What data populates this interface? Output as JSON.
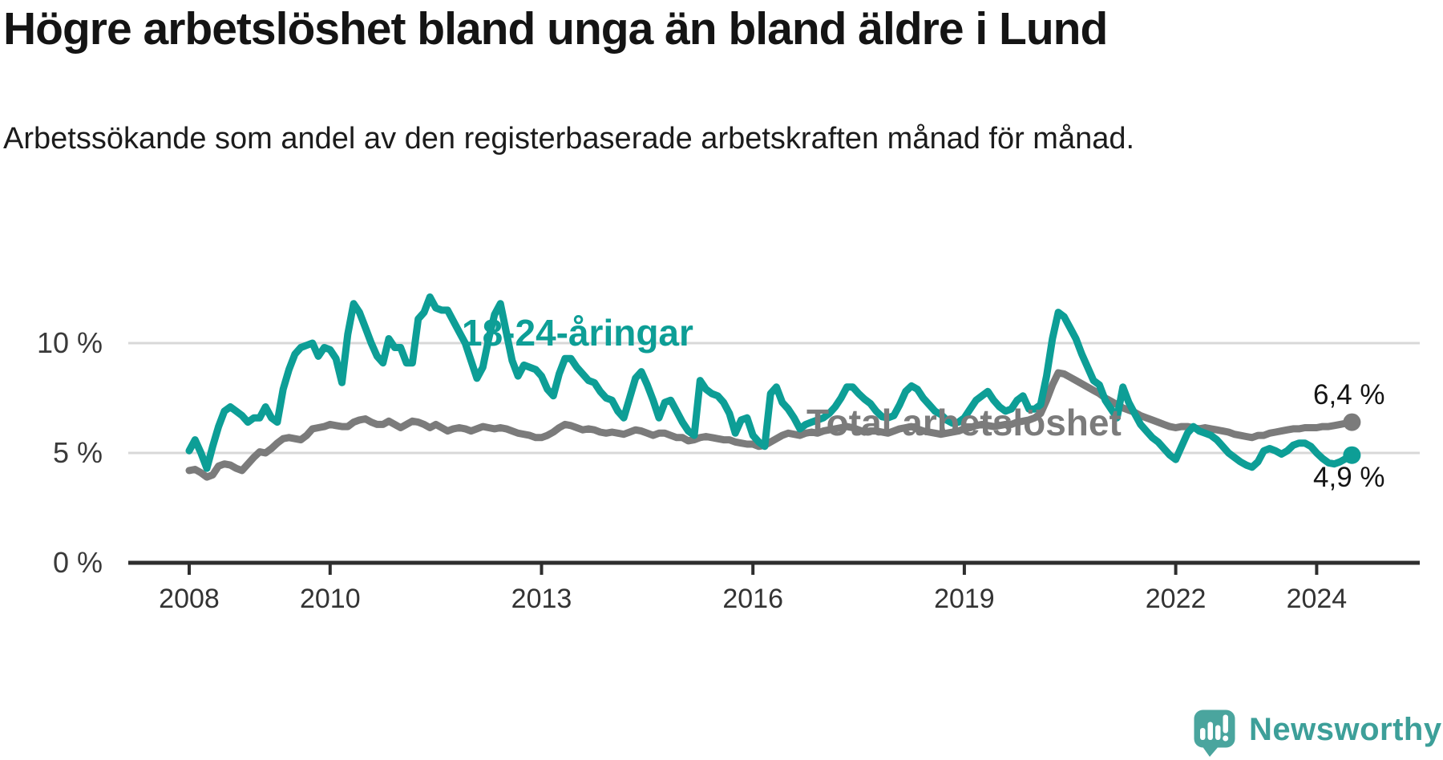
{
  "header": {
    "title": "Högre arbetslöshet bland unga än bland äldre i Lund",
    "subtitle": "Arbetssökande som andel av den registerbaserade arbetskraften månad för månad."
  },
  "chart_data": {
    "type": "line",
    "x_unit": "month",
    "x_start": "2008-01",
    "x_end": "2024-07",
    "grid": "horizontal",
    "legend_position": "inline-labels",
    "ylim": [
      0,
      13
    ],
    "colors": {
      "grid": "#d8d8d8",
      "axis": "#2e2e2e"
    },
    "y_ticks": [
      {
        "value": 0,
        "label": "0 %"
      },
      {
        "value": 5,
        "label": "5 %"
      },
      {
        "value": 10,
        "label": "10 %"
      }
    ],
    "x_ticks": [
      {
        "year": 2008,
        "label": "2008"
      },
      {
        "year": 2010,
        "label": "2010"
      },
      {
        "year": 2013,
        "label": "2013"
      },
      {
        "year": 2016,
        "label": "2016"
      },
      {
        "year": 2019,
        "label": "2019"
      },
      {
        "year": 2022,
        "label": "2022"
      },
      {
        "year": 2024,
        "label": "2024"
      }
    ],
    "series": [
      {
        "id": "total",
        "name": "Total arbetslöshet",
        "color": "#7b7b7b",
        "end_label": "6,4 %",
        "end_value": 6.4,
        "values": [
          4.2,
          4.25,
          4.1,
          3.9,
          4.0,
          4.4,
          4.5,
          4.45,
          4.3,
          4.2,
          4.5,
          4.8,
          5.05,
          5.0,
          5.2,
          5.45,
          5.65,
          5.7,
          5.65,
          5.6,
          5.8,
          6.1,
          6.15,
          6.2,
          6.3,
          6.25,
          6.2,
          6.2,
          6.4,
          6.5,
          6.55,
          6.4,
          6.3,
          6.3,
          6.45,
          6.3,
          6.15,
          6.3,
          6.45,
          6.4,
          6.3,
          6.15,
          6.3,
          6.15,
          6.0,
          6.1,
          6.15,
          6.1,
          6.0,
          6.1,
          6.2,
          6.15,
          6.1,
          6.15,
          6.1,
          6.0,
          5.9,
          5.85,
          5.8,
          5.7,
          5.7,
          5.8,
          5.95,
          6.15,
          6.3,
          6.25,
          6.15,
          6.05,
          6.1,
          6.05,
          5.95,
          5.9,
          5.95,
          5.9,
          5.85,
          5.95,
          6.05,
          6.0,
          5.9,
          5.8,
          5.9,
          5.9,
          5.8,
          5.7,
          5.7,
          5.55,
          5.6,
          5.7,
          5.75,
          5.7,
          5.65,
          5.6,
          5.6,
          5.5,
          5.45,
          5.4,
          5.4,
          5.3,
          5.35,
          5.5,
          5.65,
          5.8,
          5.9,
          5.85,
          5.8,
          5.9,
          5.95,
          5.9,
          6.0,
          6.05,
          6.1,
          6.15,
          6.2,
          6.15,
          6.05,
          5.95,
          6.0,
          6.0,
          5.95,
          5.9,
          6.0,
          6.1,
          6.15,
          6.2,
          6.1,
          6.0,
          5.95,
          5.9,
          5.85,
          5.9,
          5.95,
          6.0,
          6.1,
          6.15,
          6.25,
          6.3,
          6.25,
          6.2,
          6.25,
          6.3,
          6.3,
          6.4,
          6.45,
          6.5,
          6.6,
          6.8,
          7.4,
          8.1,
          8.65,
          8.6,
          8.45,
          8.3,
          8.15,
          8.0,
          7.85,
          7.7,
          7.5,
          7.35,
          7.2,
          7.05,
          6.95,
          6.85,
          6.7,
          6.6,
          6.5,
          6.4,
          6.3,
          6.2,
          6.15,
          6.2,
          6.2,
          6.15,
          6.1,
          6.15,
          6.1,
          6.05,
          6.0,
          5.95,
          5.85,
          5.8,
          5.75,
          5.7,
          5.8,
          5.8,
          5.9,
          5.95,
          6.0,
          6.05,
          6.1,
          6.1,
          6.15,
          6.15,
          6.15,
          6.2,
          6.2,
          6.25,
          6.3,
          6.35,
          6.4
        ]
      },
      {
        "id": "youth",
        "name": "18-24-åringar",
        "color": "#0d9e96",
        "end_label": "4,9 %",
        "end_value": 4.9,
        "values": [
          5.1,
          5.6,
          5.0,
          4.3,
          5.3,
          6.2,
          6.9,
          7.1,
          6.9,
          6.7,
          6.4,
          6.6,
          6.6,
          7.1,
          6.6,
          6.4,
          7.9,
          8.8,
          9.5,
          9.8,
          9.9,
          10.0,
          9.4,
          9.8,
          9.7,
          9.3,
          8.2,
          10.4,
          11.8,
          11.4,
          10.7,
          10.0,
          9.4,
          9.1,
          10.2,
          9.8,
          9.8,
          9.1,
          9.1,
          11.1,
          11.4,
          12.1,
          11.6,
          11.5,
          11.5,
          11.0,
          10.5,
          10.0,
          9.2,
          8.4,
          8.9,
          10.2,
          11.3,
          11.8,
          10.5,
          9.2,
          8.5,
          9.0,
          8.9,
          8.8,
          8.5,
          7.9,
          7.6,
          8.6,
          9.3,
          9.3,
          8.9,
          8.6,
          8.3,
          8.2,
          7.8,
          7.5,
          7.4,
          6.9,
          6.6,
          7.5,
          8.4,
          8.7,
          8.1,
          7.4,
          6.6,
          7.3,
          7.4,
          6.9,
          6.4,
          6.0,
          5.8,
          8.3,
          7.9,
          7.7,
          7.6,
          7.3,
          6.8,
          5.9,
          6.5,
          6.6,
          5.8,
          5.5,
          5.3,
          7.7,
          8.0,
          7.3,
          7.0,
          6.6,
          6.1,
          6.3,
          6.4,
          6.5,
          6.6,
          6.8,
          7.1,
          7.5,
          8.0,
          8.0,
          7.7,
          7.45,
          7.25,
          6.9,
          6.65,
          6.6,
          6.7,
          7.2,
          7.8,
          8.05,
          7.9,
          7.5,
          7.2,
          6.9,
          6.75,
          6.5,
          6.35,
          6.4,
          6.6,
          7.0,
          7.4,
          7.6,
          7.8,
          7.4,
          7.1,
          6.9,
          7.0,
          7.4,
          7.6,
          7.0,
          7.0,
          7.2,
          8.5,
          10.2,
          11.4,
          11.2,
          10.7,
          10.2,
          9.5,
          8.9,
          8.3,
          8.1,
          7.4,
          7.0,
          6.6,
          8.0,
          7.3,
          6.8,
          6.3,
          6.0,
          5.7,
          5.5,
          5.2,
          4.9,
          4.7,
          5.3,
          5.9,
          6.2,
          6.0,
          5.9,
          5.8,
          5.6,
          5.3,
          5.0,
          4.8,
          4.6,
          4.45,
          4.35,
          4.6,
          5.1,
          5.2,
          5.1,
          4.95,
          5.1,
          5.35,
          5.45,
          5.45,
          5.3,
          5.0,
          4.75,
          4.55,
          4.5,
          4.6,
          4.75,
          4.9
        ]
      }
    ]
  },
  "branding": {
    "logo_text": "Newsworthy"
  }
}
